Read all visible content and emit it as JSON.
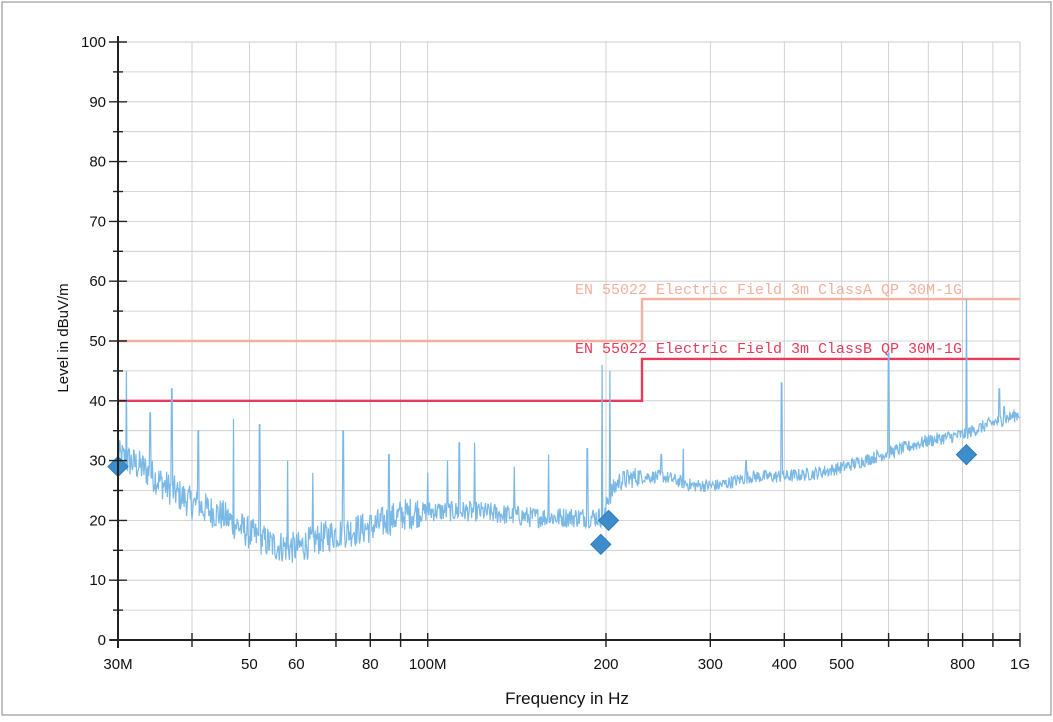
{
  "chart_data": {
    "type": "line",
    "title": "",
    "xlabel": "Frequency in Hz",
    "ylabel": "Level in dBuV/m",
    "x_scale": "log",
    "xlim": [
      30000000,
      1000000000
    ],
    "ylim": [
      0,
      100
    ],
    "grid": true,
    "x_ticks": [
      {
        "value": 30000000,
        "label": "30M"
      },
      {
        "value": 50000000,
        "label": "50"
      },
      {
        "value": 60000000,
        "label": "60"
      },
      {
        "value": 80000000,
        "label": "80"
      },
      {
        "value": 100000000,
        "label": "100M"
      },
      {
        "value": 200000000,
        "label": "200"
      },
      {
        "value": 300000000,
        "label": "300"
      },
      {
        "value": 400000000,
        "label": "400"
      },
      {
        "value": 500000000,
        "label": "500"
      },
      {
        "value": 800000000,
        "label": "800"
      },
      {
        "value": 1000000000,
        "label": "1G"
      }
    ],
    "y_ticks": [
      0,
      10,
      20,
      30,
      40,
      50,
      60,
      70,
      80,
      90,
      100
    ],
    "limit_lines": [
      {
        "name": "EN 55022 Electric Field 3m ClassA QP 30M-1G",
        "color": "#f4b09c",
        "points": [
          [
            30000000,
            50
          ],
          [
            230000000,
            50
          ],
          [
            230000000,
            57
          ],
          [
            1000000000,
            57
          ]
        ]
      },
      {
        "name": "EN 55022 Electric Field 3m ClassB QP 30M-1G",
        "color": "#e63c5a",
        "points": [
          [
            30000000,
            40
          ],
          [
            230000000,
            40
          ],
          [
            230000000,
            47
          ],
          [
            1000000000,
            47
          ]
        ]
      }
    ],
    "series": [
      {
        "color": "#7ab8e6",
        "envelope": [
          [
            30000000,
            30
          ],
          [
            33000000,
            28
          ],
          [
            36000000,
            25
          ],
          [
            40000000,
            22
          ],
          [
            45000000,
            20
          ],
          [
            50000000,
            17
          ],
          [
            55000000,
            15
          ],
          [
            60000000,
            14.5
          ],
          [
            65000000,
            16
          ],
          [
            70000000,
            17
          ],
          [
            80000000,
            18
          ],
          [
            90000000,
            20
          ],
          [
            100000000,
            21
          ],
          [
            120000000,
            21
          ],
          [
            150000000,
            20
          ],
          [
            180000000,
            20
          ],
          [
            199000000,
            20
          ],
          [
            201000000,
            23
          ],
          [
            210000000,
            26
          ],
          [
            230000000,
            27
          ],
          [
            250000000,
            27
          ],
          [
            280000000,
            25.5
          ],
          [
            310000000,
            25.5
          ],
          [
            350000000,
            27
          ],
          [
            400000000,
            27
          ],
          [
            450000000,
            27.5
          ],
          [
            500000000,
            28.5
          ],
          [
            600000000,
            31
          ],
          [
            700000000,
            33
          ],
          [
            800000000,
            34
          ],
          [
            900000000,
            36
          ],
          [
            1000000000,
            37.5
          ]
        ],
        "spikes": [
          [
            31000000,
            45
          ],
          [
            34000000,
            38
          ],
          [
            37000000,
            42
          ],
          [
            41000000,
            35
          ],
          [
            47000000,
            37
          ],
          [
            52000000,
            36
          ],
          [
            58000000,
            30
          ],
          [
            64000000,
            28
          ],
          [
            72000000,
            35
          ],
          [
            86000000,
            31
          ],
          [
            100000000,
            28
          ],
          [
            108000000,
            30
          ],
          [
            113000000,
            33
          ],
          [
            120000000,
            33
          ],
          [
            140000000,
            29
          ],
          [
            160000000,
            31
          ],
          [
            186000000,
            32
          ],
          [
            197000000,
            46
          ],
          [
            203000000,
            45
          ],
          [
            248000000,
            31
          ],
          [
            270000000,
            32
          ],
          [
            345000000,
            30
          ],
          [
            396000000,
            43
          ],
          [
            600000000,
            48
          ],
          [
            812000000,
            57
          ],
          [
            922000000,
            42
          ],
          [
            940000000,
            39
          ]
        ]
      }
    ],
    "markers": {
      "color": "#3d8dcc",
      "points": [
        [
          30000000,
          29
        ],
        [
          196000000,
          16
        ],
        [
          202000000,
          20
        ],
        [
          812000000,
          31
        ]
      ]
    }
  }
}
